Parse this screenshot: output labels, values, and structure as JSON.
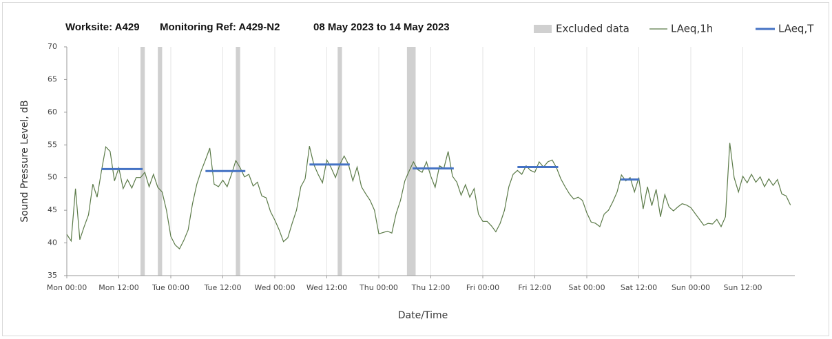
{
  "chart_data": {
    "type": "line",
    "title_parts": [
      "Worksite: A429",
      "Monitoring Ref: A429-N2",
      "08 May 2023 to 14 May 2023"
    ],
    "xlabel": "Date/Time",
    "ylabel": "Sound Pressure Level, dB",
    "xlim": [
      0,
      168
    ],
    "xticks": [
      {
        "value": 0,
        "label": "Mon 00:00"
      },
      {
        "value": 12,
        "label": "Mon 12:00"
      },
      {
        "value": 24,
        "label": "Tue 00:00"
      },
      {
        "value": 36,
        "label": "Tue 12:00"
      },
      {
        "value": 48,
        "label": "Wed 00:00"
      },
      {
        "value": 60,
        "label": "Wed 12:00"
      },
      {
        "value": 72,
        "label": "Thu 00:00"
      },
      {
        "value": 84,
        "label": "Thu 12:00"
      },
      {
        "value": 96,
        "label": "Fri 00:00"
      },
      {
        "value": 108,
        "label": "Fri 12:00"
      },
      {
        "value": 120,
        "label": "Sat 00:00"
      },
      {
        "value": 132,
        "label": "Sat 12:00"
      },
      {
        "value": 144,
        "label": "Sun 00:00"
      },
      {
        "value": 156,
        "label": "Sun 12:00"
      }
    ],
    "ylim": [
      35,
      70
    ],
    "yticks": [
      35,
      40,
      45,
      50,
      55,
      60,
      65,
      70
    ],
    "grid": "x",
    "legend": "top-right",
    "excluded": {
      "name": "Excluded data",
      "color": "#d0d0d0",
      "ranges": [
        [
          17,
          18
        ],
        [
          21,
          22
        ],
        [
          39,
          40
        ],
        [
          62.5,
          63.5
        ],
        [
          78.5,
          80.5
        ]
      ]
    },
    "series": [
      {
        "name": "LAeq,1h",
        "color": "#5b7a48",
        "x": [
          0,
          1,
          2,
          3,
          4,
          5,
          6,
          7,
          8,
          9,
          10,
          11,
          12,
          13,
          14,
          15,
          16,
          17,
          18,
          19,
          20,
          21,
          22,
          23,
          24,
          25,
          26,
          27,
          28,
          29,
          30,
          31,
          32,
          33,
          34,
          35,
          36,
          37,
          38,
          39,
          40,
          41,
          42,
          43,
          44,
          45,
          46,
          47,
          48,
          49,
          50,
          51,
          52,
          53,
          54,
          55,
          56,
          57,
          58,
          59,
          60,
          61,
          62,
          63,
          64,
          65,
          66,
          67,
          68,
          69,
          70,
          71,
          72,
          73,
          74,
          75,
          76,
          77,
          78,
          79,
          80,
          81,
          82,
          83,
          84,
          85,
          86,
          87,
          88,
          89,
          90,
          91,
          92,
          93,
          94,
          95,
          96,
          97,
          98,
          99,
          100,
          101,
          102,
          103,
          104,
          105,
          106,
          107,
          108,
          109,
          110,
          111,
          112,
          113,
          114,
          115,
          116,
          117,
          118,
          119,
          120,
          121,
          122,
          123,
          124,
          125,
          126,
          127,
          128,
          129,
          130,
          131,
          132,
          133,
          134,
          135,
          136,
          137,
          138,
          139,
          140,
          141,
          142,
          143,
          144,
          145,
          146,
          147,
          148,
          149,
          150,
          151,
          152,
          153,
          154,
          155,
          156,
          157,
          158,
          159,
          160,
          161,
          162,
          163,
          164,
          165,
          166,
          167
        ],
        "values": [
          41.3,
          40.3,
          48.3,
          40.5,
          42.5,
          44.3,
          49,
          47,
          51,
          54.7,
          54,
          49.5,
          51.5,
          48.3,
          49.7,
          48.4,
          50,
          50,
          50.8,
          48.6,
          50.5,
          48.5,
          47.8,
          45,
          41,
          39.7,
          39.1,
          40.4,
          42,
          46,
          49,
          51,
          52.7,
          54.5,
          49,
          48.6,
          49.6,
          48.6,
          50.5,
          52.6,
          51.5,
          50.1,
          50.5,
          48.7,
          49.3,
          47.2,
          46.9,
          44.8,
          43.5,
          42,
          40.2,
          40.8,
          43,
          45,
          48.6,
          49.8,
          54.8,
          52,
          50.5,
          49.2,
          52.7,
          51.5,
          50,
          52,
          53.3,
          52,
          49.5,
          51.6,
          48.6,
          47.5,
          46.5,
          45,
          41.4,
          41.6,
          41.8,
          41.5,
          44.5,
          46.5,
          49.5,
          51,
          52.4,
          51.2,
          50.8,
          52.4,
          50.2,
          48.5,
          51.8,
          51.4,
          54,
          50.2,
          49.3,
          47.3,
          48.9,
          47,
          48.3,
          44.4,
          43.3,
          43.3,
          42.6,
          41.7,
          43,
          45,
          48.6,
          50.5,
          51.1,
          50.5,
          51.8,
          51.1,
          50.8,
          52.4,
          51.6,
          52.4,
          52.7,
          51.5,
          49.8,
          48.6,
          47.5,
          46.7,
          47,
          46.5,
          44.6,
          43.2,
          43,
          42.5,
          44.4,
          45,
          46.3,
          47.8,
          50.4,
          49.5,
          50,
          47.8,
          50,
          45.2,
          48.6,
          45.7,
          48.2,
          44,
          47.4,
          45.5,
          44.9,
          45.5,
          46,
          45.8,
          45.4,
          44.5,
          43.6,
          42.7,
          43,
          42.9,
          43.6,
          42.5,
          44,
          55.3,
          50,
          47.8,
          50.2,
          49.2,
          50.5,
          49.3,
          50.1,
          48.6,
          49.8,
          48.8,
          49.7,
          47.5,
          47.2,
          45.8
        ]
      },
      {
        "name": "LAeq,T",
        "color": "#4472c4",
        "segments": [
          {
            "start": 8,
            "end": 17.5,
            "value": 51.3
          },
          {
            "start": 32,
            "end": 41.2,
            "value": 51.0
          },
          {
            "start": 56,
            "end": 65.3,
            "value": 52.0
          },
          {
            "start": 79.8,
            "end": 89.3,
            "value": 51.4
          },
          {
            "start": 104,
            "end": 113.4,
            "value": 51.6
          },
          {
            "start": 127.8,
            "end": 132.1,
            "value": 49.7
          }
        ]
      }
    ]
  }
}
